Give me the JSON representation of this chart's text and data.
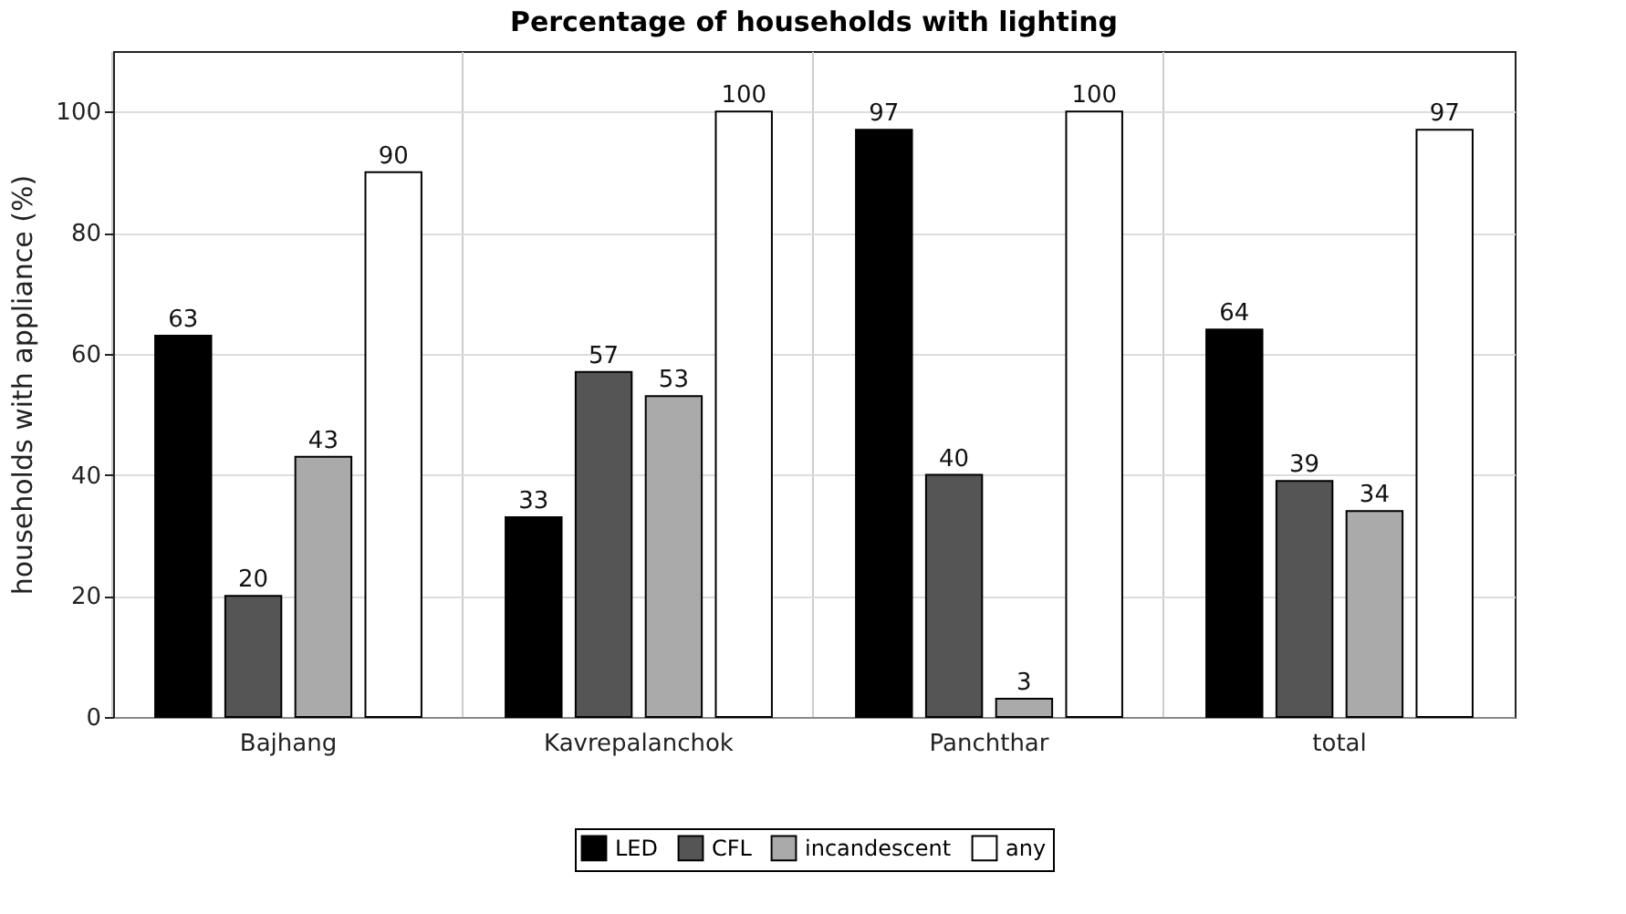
{
  "chart_data": {
    "type": "bar",
    "title": "Percentage of households with lighting",
    "ylabel": "households with appliance (%)",
    "categories": [
      "Bajhang",
      "Kavrepalanchok",
      "Panchthar",
      "total"
    ],
    "series": [
      {
        "name": "LED",
        "color": "#000000",
        "values": [
          63,
          33,
          97,
          64
        ]
      },
      {
        "name": "CFL",
        "color": "#555555",
        "values": [
          20,
          57,
          40,
          39
        ]
      },
      {
        "name": "incandescent",
        "color": "#aaaaaa",
        "values": [
          43,
          53,
          3,
          34
        ]
      },
      {
        "name": "any",
        "color": "#ffffff",
        "values": [
          90,
          100,
          100,
          97
        ]
      }
    ],
    "ylim": [
      0,
      110
    ],
    "yticks": [
      0,
      20,
      40,
      60,
      80,
      100
    ],
    "grid": true,
    "legend": "bottom",
    "data_labels": true
  }
}
